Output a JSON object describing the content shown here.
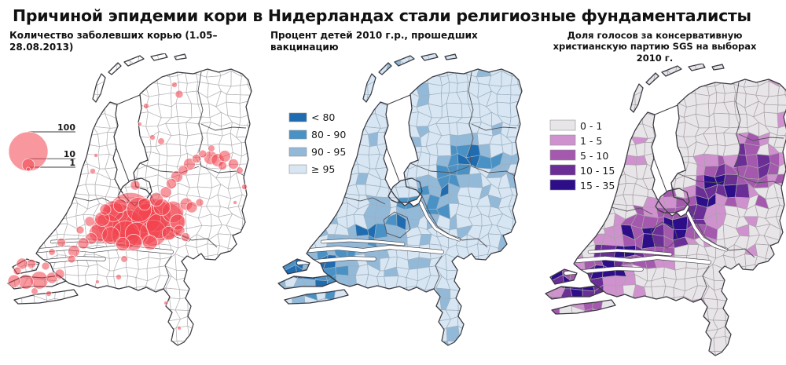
{
  "title": "Причиной эпидемии кори в Нидерландах стали религиозные фундаменталисты",
  "panels": [
    {
      "id": "measles",
      "subtitle": "Количество заболевших корью (1.05–28.08.2013)"
    },
    {
      "id": "vaccination",
      "subtitle": "Процент детей 2010 г.р., прошедших вакцинацию"
    },
    {
      "id": "sgp-vote",
      "subtitle": "Доля голосов за консервативную христианскую партию SGS на выборах 2010 г."
    }
  ],
  "colors": {
    "outline": "#3a3a42",
    "municipal_border_white": "#b5b2b6",
    "municipal_border_blue": "#9db0c0",
    "municipal_border_purple": "#a8a2a8",
    "province_border": "#53525a",
    "bubble": "#f2444e"
  },
  "chart_data": [
    {
      "type": "bubble-map",
      "region": "Netherlands municipalities",
      "title": "Количество заболевших корью (1.05–28.08.2013)",
      "unit": "measles cases",
      "size_legend_values": [
        100,
        10,
        1
      ],
      "bubble_color": "#f2444e",
      "note": "cases concentrated along the Bible Belt from Zeeland through Utrecht/Veluwe to the northeast",
      "bubbles_xyn": [
        [
          160,
          208,
          150
        ],
        [
          143,
          216,
          100
        ],
        [
          204,
          214,
          95
        ],
        [
          176,
          221,
          85
        ],
        [
          191,
          206,
          70
        ],
        [
          157,
          219,
          60
        ],
        [
          180,
          210,
          55
        ],
        [
          129,
          223,
          55
        ],
        [
          154,
          231,
          50
        ],
        [
          189,
          229,
          45
        ],
        [
          171,
          199,
          40
        ],
        [
          196,
          220,
          40
        ],
        [
          168,
          230,
          35
        ],
        [
          214,
          202,
          30
        ],
        [
          138,
          201,
          28
        ],
        [
          119,
          229,
          22
        ],
        [
          135,
          232,
          20
        ],
        [
          200,
          196,
          18
        ],
        [
          164,
          241,
          18
        ],
        [
          220,
          215,
          16
        ],
        [
          185,
          241,
          14
        ],
        [
          124,
          211,
          14
        ],
        [
          150,
          243,
          12
        ],
        [
          147,
          194,
          12
        ],
        [
          209,
          229,
          12
        ],
        [
          178,
          192,
          10
        ],
        [
          231,
          192,
          10
        ],
        [
          128,
          199,
          8
        ],
        [
          238,
          196,
          8
        ],
        [
          222,
          226,
          8
        ],
        [
          230,
          234,
          5
        ],
        [
          248,
          190,
          4
        ],
        [
          110,
          236,
          9
        ],
        [
          100,
          242,
          8
        ],
        [
          88,
          252,
          9
        ],
        [
          72,
          241,
          5
        ],
        [
          60,
          253,
          3
        ],
        [
          96,
          225,
          4
        ],
        [
          108,
          214,
          6
        ],
        [
          85,
          262,
          4
        ],
        [
          166,
          168,
          6
        ],
        [
          193,
          186,
          12
        ],
        [
          205,
          177,
          8
        ],
        [
          212,
          166,
          7
        ],
        [
          219,
          157,
          9
        ],
        [
          227,
          149,
          6
        ],
        [
          235,
          141,
          9
        ],
        [
          244,
          134,
          5
        ],
        [
          252,
          128,
          4
        ],
        [
          262,
          133,
          12
        ],
        [
          271,
          136,
          11
        ],
        [
          280,
          131,
          9
        ],
        [
          277,
          143,
          5
        ],
        [
          291,
          141,
          7
        ],
        [
          299,
          149,
          3
        ],
        [
          263,
          121,
          3
        ],
        [
          305,
          170,
          2
        ],
        [
          293,
          190,
          1
        ],
        [
          216,
          40,
          2
        ],
        [
          222,
          52,
          4
        ],
        [
          180,
          67,
          2
        ],
        [
          188,
          107,
          2
        ],
        [
          199,
          112,
          3
        ],
        [
          172,
          90,
          1
        ],
        [
          112,
          150,
          2
        ],
        [
          116,
          130,
          1
        ],
        [
          22,
          268,
          8
        ],
        [
          34,
          268,
          5
        ],
        [
          16,
          277,
          4
        ],
        [
          12,
          290,
          10
        ],
        [
          27,
          291,
          14
        ],
        [
          44,
          289,
          20
        ],
        [
          60,
          286,
          8
        ],
        [
          38,
          303,
          3
        ],
        [
          56,
          306,
          2
        ],
        [
          70,
          281,
          6
        ],
        [
          52,
          271,
          4
        ],
        [
          145,
          285,
          2
        ],
        [
          152,
          262,
          3
        ],
        [
          118,
          291,
          1
        ],
        [
          205,
          318,
          1
        ],
        [
          222,
          350,
          1
        ]
      ]
    },
    {
      "type": "choropleth-map",
      "region": "Netherlands municipalities",
      "title": "Процент детей 2010 г.р., прошедших вакцинацию",
      "unit": "% vaccinated",
      "classes": [
        {
          "label": "< 80",
          "color": "#1f6cb0"
        },
        {
          "label": "80 - 90",
          "color": "#4a92c5"
        },
        {
          "label": "90 - 95",
          "color": "#93b9d8"
        },
        {
          "label": "≥ 95",
          "color": "#d7e6f2"
        }
      ],
      "note": "lowest vaccination rates along the Bible Belt from Zeeland to the northeast"
    },
    {
      "type": "choropleth-map",
      "region": "Netherlands municipalities",
      "title": "Доля голосов за консервативную христианскую партию SGS на выборах 2010 г.",
      "unit": "% of votes",
      "classes": [
        {
          "label": "0 - 1",
          "color": "#e8e5e8"
        },
        {
          "label": "1 - 5",
          "color": "#cf92ce"
        },
        {
          "label": "5 - 10",
          "color": "#a458ae"
        },
        {
          "label": "10 - 15",
          "color": "#6b2d96"
        },
        {
          "label": "15 - 35",
          "color": "#2d0e88"
        }
      ],
      "note": "highest conservative vote share along the same Bible Belt band"
    }
  ]
}
